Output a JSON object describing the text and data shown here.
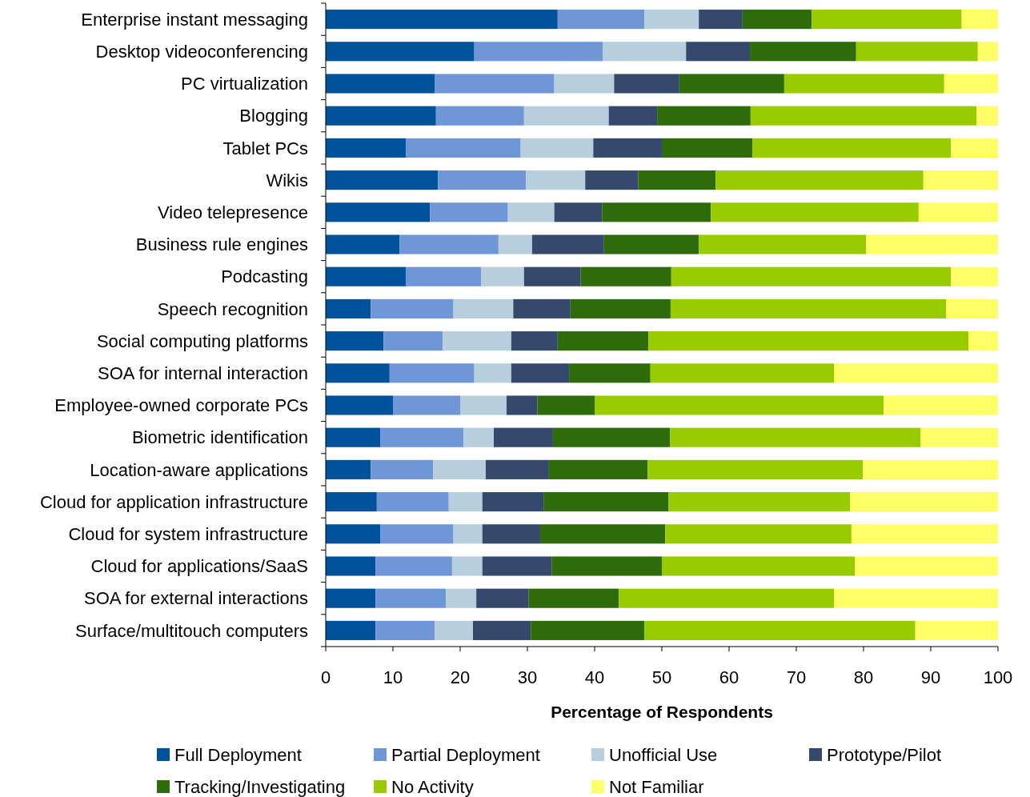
{
  "chart_data": {
    "type": "bar",
    "orientation": "horizontal",
    "stacked": true,
    "xlabel": "Percentage of Respondents",
    "categories": [
      "Enterprise instant messaging",
      "Desktop videoconferencing",
      "PC virtualization",
      "Blogging",
      "Tablet PCs",
      "Wikis",
      "Video telepresence",
      "Business rule engines",
      "Podcasting",
      "Speech recognition",
      "Social computing platforms",
      "SOA for internal interaction",
      "Employee-owned corporate PCs",
      "Biometric identification",
      "Location-aware applications",
      "Cloud for application infrastructure",
      "Cloud for system infrastructure",
      "Cloud for applications/SaaS",
      "SOA for external interactions",
      "Surface/multitouch computers"
    ],
    "series": [
      {
        "name": "Full Deployment",
        "color": "#00529b",
        "values": [
          34.5,
          22.1,
          16.2,
          16.4,
          11.9,
          16.7,
          15.5,
          11.0,
          11.9,
          6.7,
          8.6,
          9.5,
          10.0,
          8.1,
          6.7,
          7.6,
          8.1,
          7.4,
          7.4,
          7.4
        ]
      },
      {
        "name": "Partial Deployment",
        "color": "#6f96d6",
        "values": [
          12.9,
          19.1,
          17.8,
          13.1,
          17.1,
          13.1,
          11.6,
          14.7,
          11.2,
          12.3,
          8.8,
          12.6,
          10.0,
          12.4,
          9.3,
          10.7,
          10.9,
          11.4,
          10.5,
          8.8
        ]
      },
      {
        "name": "Unofficial Use",
        "color": "#b7cfdc",
        "values": [
          8.1,
          12.4,
          8.9,
          12.6,
          10.8,
          8.8,
          6.9,
          5.0,
          6.4,
          8.9,
          10.2,
          5.5,
          6.9,
          4.5,
          7.8,
          5.0,
          4.3,
          4.5,
          4.5,
          5.7
        ]
      },
      {
        "name": "Prototype/Pilot",
        "color": "#34496b",
        "values": [
          6.5,
          9.5,
          9.7,
          7.2,
          10.2,
          7.9,
          7.1,
          10.7,
          8.4,
          8.5,
          6.9,
          8.6,
          4.6,
          8.8,
          9.4,
          9.1,
          8.6,
          10.3,
          7.8,
          8.6
        ]
      },
      {
        "name": "Tracking/Investigating",
        "color": "#2e6b0a",
        "values": [
          10.3,
          15.8,
          15.6,
          13.9,
          13.5,
          11.5,
          16.2,
          14.1,
          13.5,
          14.9,
          13.5,
          12.1,
          8.5,
          17.4,
          14.7,
          18.6,
          18.6,
          16.4,
          13.4,
          16.9
        ]
      },
      {
        "name": "No Activity",
        "color": "#99cc00",
        "values": [
          22.3,
          18.1,
          23.8,
          33.6,
          29.5,
          30.9,
          30.9,
          24.9,
          41.6,
          41.0,
          47.6,
          27.3,
          43.0,
          37.3,
          32.0,
          27.0,
          27.7,
          28.7,
          32.0,
          40.3
        ]
      },
      {
        "name": "Not Familiar",
        "color": "#ffff66",
        "values": [
          5.4,
          3.0,
          8.0,
          3.2,
          7.0,
          11.1,
          11.8,
          19.6,
          7.0,
          7.7,
          4.4,
          24.4,
          17.0,
          11.5,
          20.1,
          22.0,
          21.8,
          21.3,
          24.4,
          12.3
        ]
      }
    ],
    "xlim": [
      0,
      100
    ],
    "xticks": [
      0,
      10,
      20,
      30,
      40,
      50,
      60,
      70,
      80,
      90,
      100
    ],
    "grid": false,
    "legend": "bottom"
  }
}
